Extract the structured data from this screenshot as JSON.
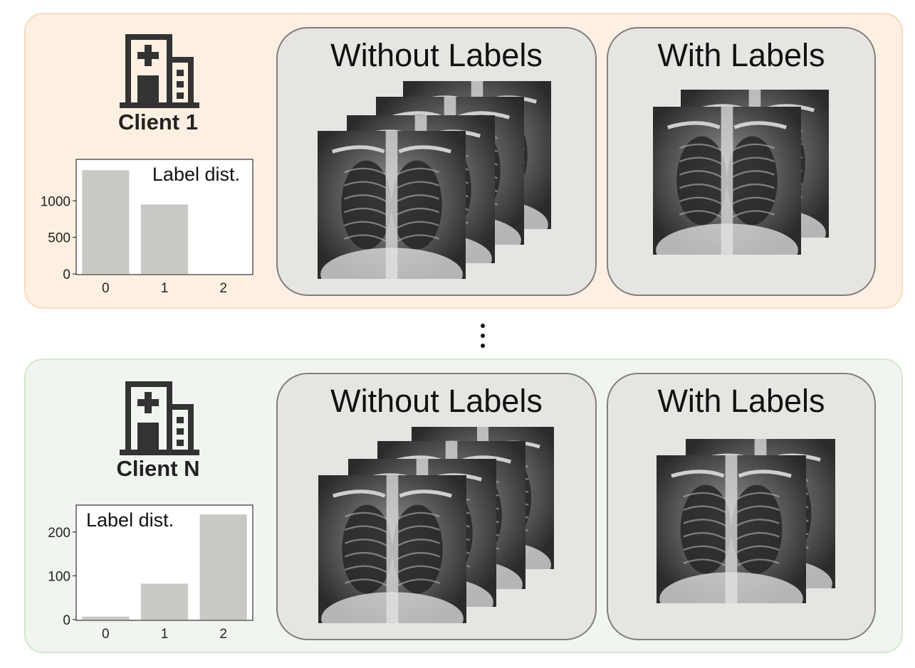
{
  "clients": [
    {
      "name": "Client 1",
      "boxes": {
        "without": "Without Labels",
        "with": "With Labels"
      },
      "chart_data": {
        "type": "bar",
        "title": "Label dist.",
        "categories": [
          "0",
          "1",
          "2"
        ],
        "values": [
          1420,
          950,
          0
        ],
        "yticks": [
          "0",
          "500",
          "1000"
        ],
        "ylim": [
          0,
          1500
        ],
        "bar_color": "#c8c9c4",
        "legend_position": "top-right"
      }
    },
    {
      "name": "Client N",
      "boxes": {
        "without": "Without Labels",
        "with": "With Labels"
      },
      "chart_data": {
        "type": "bar",
        "title": "Label dist.",
        "categories": [
          "0",
          "1",
          "2"
        ],
        "values": [
          7,
          82,
          240
        ],
        "yticks": [
          "0",
          "100",
          "200"
        ],
        "ylim": [
          0,
          250
        ],
        "bar_color": "#c8c9c4",
        "legend_position": "top-left"
      }
    }
  ],
  "colors": {
    "client1_bg": "#fdf0e2",
    "clientN_bg": "#f0f5ef",
    "box_bg": "#e7e5e2",
    "icon": "#333333"
  },
  "icons": [
    "hospital-icon",
    "vertical-ellipsis-icon"
  ]
}
